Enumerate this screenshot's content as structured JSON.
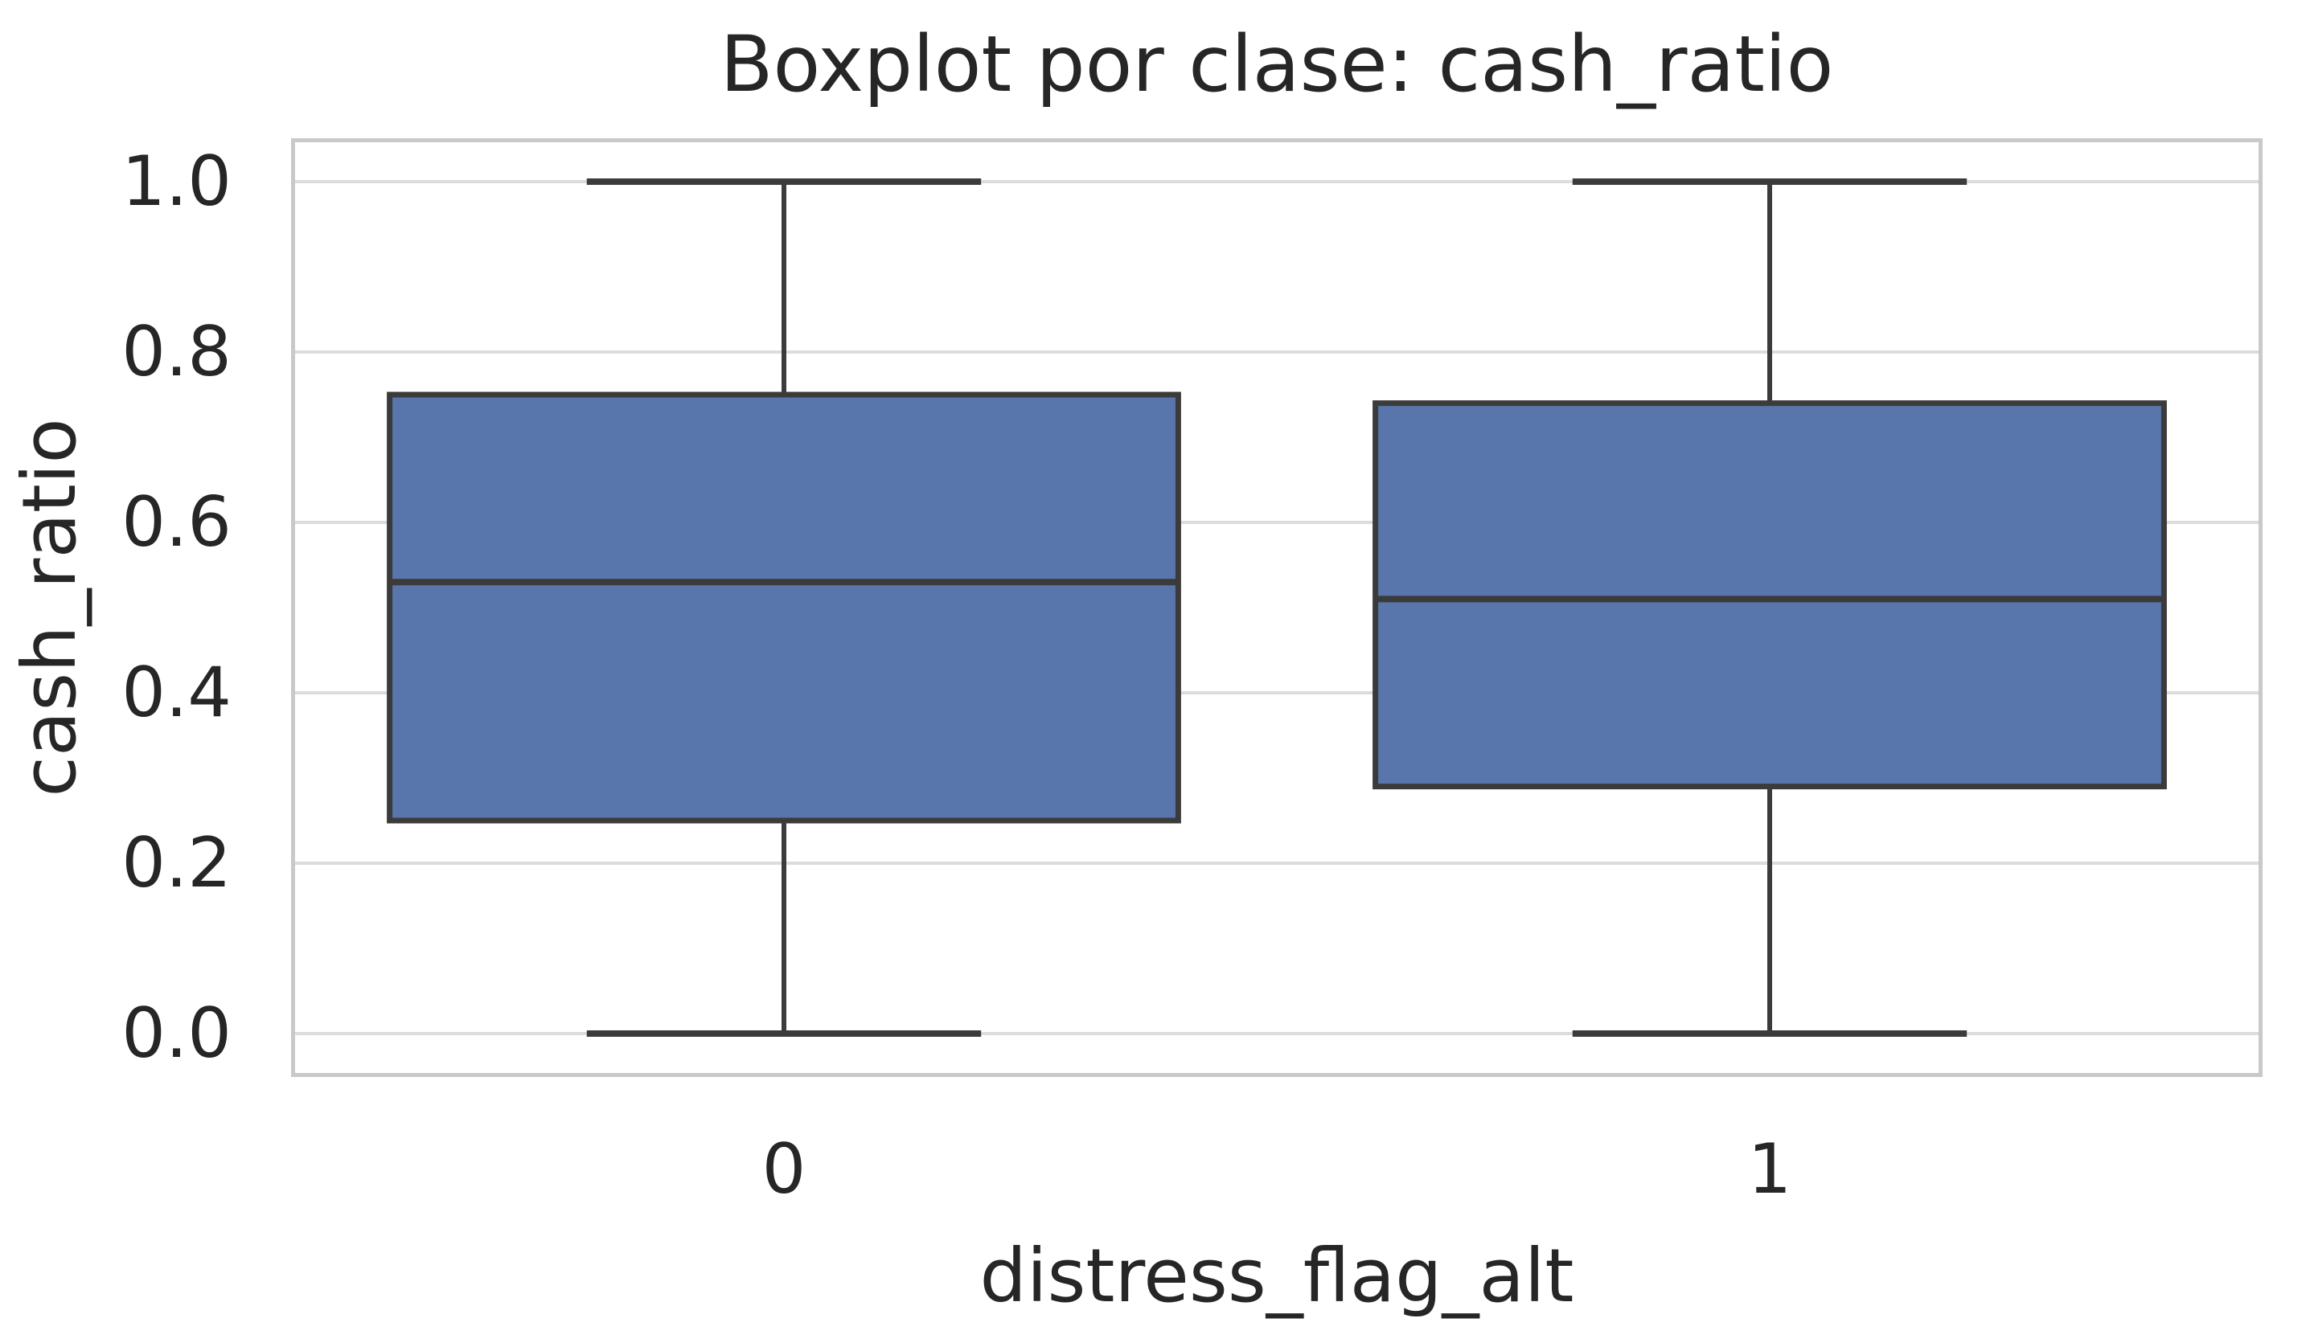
{
  "figure": {
    "background": "#ffffff"
  },
  "chart_data": {
    "type": "box",
    "title": "Boxplot por clase: cash_ratio",
    "xlabel": "distress_flag_alt",
    "ylabel": "cash_ratio",
    "categories": [
      "0",
      "1"
    ],
    "boxes": [
      {
        "category": "0",
        "whisker_low": 0.0,
        "q1": 0.25,
        "median": 0.53,
        "q3": 0.75,
        "whisker_high": 1.0
      },
      {
        "category": "1",
        "whisker_low": 0.0,
        "q1": 0.29,
        "median": 0.51,
        "q3": 0.74,
        "whisker_high": 1.0
      }
    ],
    "box_width": 0.8,
    "cap_width": 0.4,
    "ytick_values": [
      1.0,
      0.8,
      0.6,
      0.4,
      0.2,
      0.0
    ],
    "ytick_labels": [
      "1.0",
      "0.8",
      "0.6",
      "0.4",
      "0.2",
      "0.0"
    ],
    "ylim": [
      -0.051,
      1.051
    ],
    "xlim": [
      -0.5,
      1.5
    ],
    "grid": true,
    "legend_position": "none",
    "colors": {
      "box_fill": "#5876AB",
      "box_edge": "#3B3B3B",
      "whisker": "#3B3B3B",
      "median": "#3B3B3B",
      "grid": "#DCDCDC",
      "spine": "#C9C9C9",
      "text": "#262626",
      "background": "#FFFFFF"
    }
  }
}
